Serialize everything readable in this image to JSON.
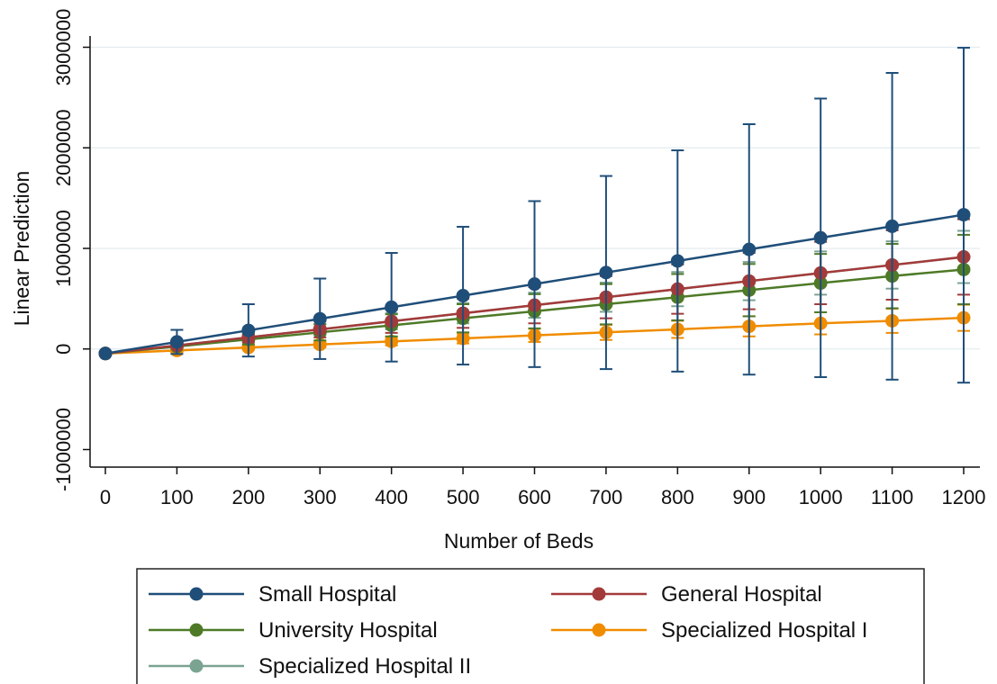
{
  "chart_data": {
    "type": "line",
    "xlabel": "Number of Beds",
    "ylabel": "Linear Prediction",
    "x": [
      0,
      100,
      200,
      300,
      400,
      500,
      600,
      700,
      800,
      900,
      1000,
      1100,
      1200
    ],
    "xlim": [
      0,
      1200
    ],
    "ylim": [
      -1000000,
      3000000
    ],
    "xticks": [
      "0",
      "100",
      "200",
      "300",
      "400",
      "500",
      "600",
      "700",
      "800",
      "900",
      "1000",
      "1100",
      "1200"
    ],
    "yticks": [
      {
        "value": -1000000,
        "label": "-1000000"
      },
      {
        "value": 0,
        "label": "0"
      },
      {
        "value": 1000000,
        "label": "1000000"
      },
      {
        "value": 2000000,
        "label": "2000000"
      },
      {
        "value": 3000000,
        "label": "3000000"
      }
    ],
    "grid": true,
    "legend_position": "bottom",
    "series": [
      {
        "name": "Small Hospital",
        "color": "#1f4e79",
        "values": [
          -45000,
          70000,
          185000,
          300000,
          415000,
          530000,
          645000,
          760000,
          875000,
          990000,
          1105000,
          1220000,
          1335000
        ],
        "lower": [
          -55000,
          -50000,
          -75000,
          -100000,
          -125000,
          -155000,
          -180000,
          -200000,
          -225000,
          -255000,
          -280000,
          -305000,
          -335000
        ],
        "upper": [
          -35000,
          190000,
          445000,
          700000,
          955000,
          1215000,
          1470000,
          1720000,
          1975000,
          2235000,
          2490000,
          2745000,
          2995000
        ]
      },
      {
        "name": "General Hospital",
        "color": "#a33a3a",
        "values": [
          -45000,
          35000,
          115000,
          195000,
          275000,
          355000,
          435000,
          515000,
          595000,
          675000,
          755000,
          835000,
          915000
        ],
        "lower": [
          -50000,
          15000,
          65000,
          115000,
          160000,
          210000,
          255000,
          305000,
          350000,
          395000,
          445000,
          490000,
          540000
        ],
        "upper": [
          -40000,
          55000,
          165000,
          275000,
          390000,
          500000,
          615000,
          725000,
          840000,
          955000,
          1065000,
          1180000,
          1290000
        ]
      },
      {
        "name": "University Hospital",
        "color": "#4e7a27",
        "values": [
          -45000,
          25000,
          95000,
          165000,
          235000,
          305000,
          375000,
          445000,
          515000,
          585000,
          655000,
          725000,
          790000
        ],
        "lower": [
          -50000,
          5000,
          45000,
          85000,
          125000,
          165000,
          205000,
          245000,
          285000,
          325000,
          365000,
          405000,
          445000
        ],
        "upper": [
          -40000,
          45000,
          145000,
          245000,
          345000,
          445000,
          545000,
          645000,
          745000,
          845000,
          945000,
          1045000,
          1135000
        ]
      },
      {
        "name": "Specialized Hospital I",
        "color": "#f08c00",
        "values": [
          -45000,
          -15000,
          15000,
          45000,
          75000,
          105000,
          135000,
          165000,
          195000,
          225000,
          255000,
          280000,
          310000
        ],
        "lower": [
          -50000,
          -25000,
          -5000,
          15000,
          35000,
          55000,
          70000,
          90000,
          110000,
          125000,
          145000,
          160000,
          180000
        ],
        "upper": [
          -40000,
          -5000,
          35000,
          75000,
          115000,
          155000,
          200000,
          240000,
          280000,
          325000,
          365000,
          400000,
          440000
        ]
      },
      {
        "name": "Specialized Hospital II",
        "color": "#7aa391",
        "values": [
          -45000,
          35000,
          115000,
          195000,
          275000,
          355000,
          435000,
          515000,
          595000,
          675000,
          755000,
          835000,
          915000
        ],
        "lower": [
          -50000,
          20000,
          80000,
          140000,
          195000,
          255000,
          310000,
          370000,
          425000,
          485000,
          540000,
          600000,
          655000
        ],
        "upper": [
          -40000,
          50000,
          150000,
          250000,
          355000,
          455000,
          560000,
          660000,
          765000,
          865000,
          970000,
          1070000,
          1175000
        ]
      }
    ]
  }
}
